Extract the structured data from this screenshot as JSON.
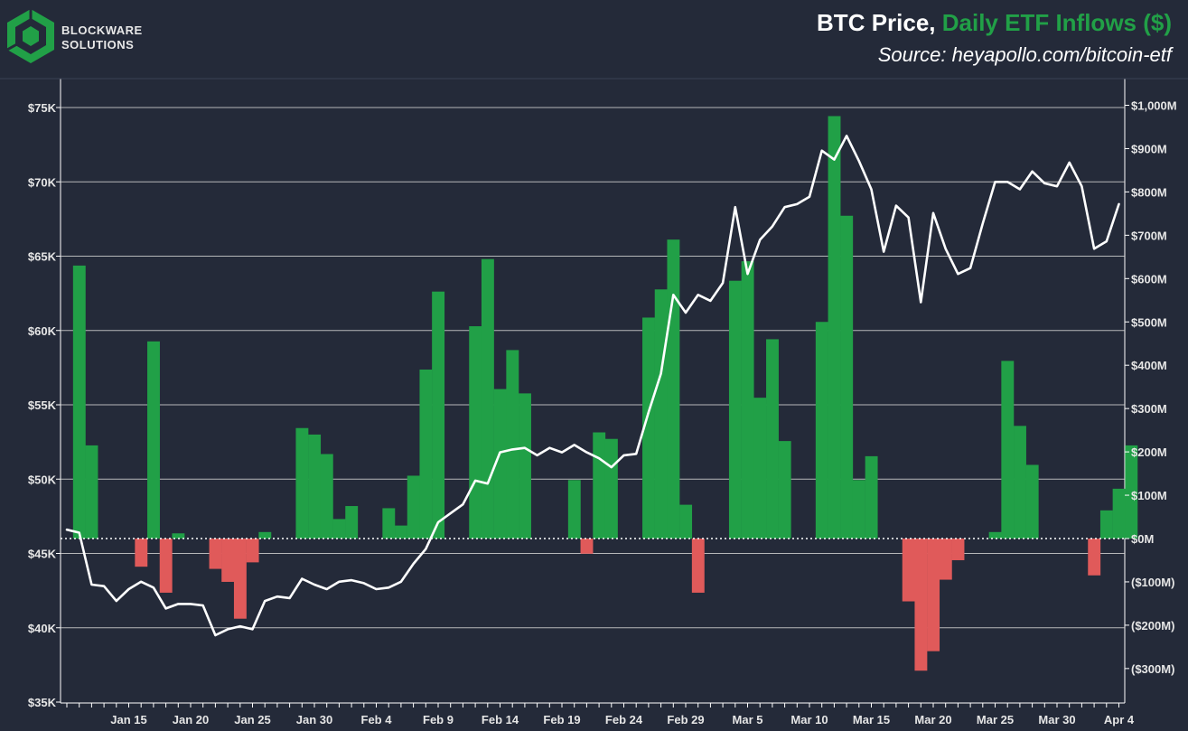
{
  "brand": {
    "line1": "BLOCKWARE",
    "line2": "SOLUTIONS",
    "logo_color": "#21a047",
    "icon": "blockware-cube-logo"
  },
  "header": {
    "title_part1": "BTC Price, ",
    "title_part2": "Daily ETF Inflows ($)",
    "source": "Source: heyapollo.com/bitcoin-etf"
  },
  "colors": {
    "background": "#242a39",
    "plot_background": "#232938",
    "gridline": "#d0d0d0",
    "inflow_positive": "#21a047",
    "inflow_negative": "#e05a5a",
    "price_line": "#ffffff",
    "zero_line": "#ffffff"
  },
  "chart_data": {
    "type": "bar+line",
    "title": "BTC Price, Daily ETF Inflows ($)",
    "x_tick_labels": [
      "Jan 15",
      "Jan 20",
      "Jan 25",
      "Jan 30",
      "Feb 4",
      "Feb 9",
      "Feb 14",
      "Feb 19",
      "Feb 24",
      "Feb 29",
      "Mar 5",
      "Mar 10",
      "Mar 15",
      "Mar 20",
      "Mar 25",
      "Mar 30",
      "Apr 4"
    ],
    "x_range": [
      "Jan 10",
      "Apr 5"
    ],
    "left_axis": {
      "ylim": [
        35,
        77
      ],
      "ticks": [
        35,
        40,
        45,
        50,
        55,
        60,
        65,
        70,
        75
      ],
      "tick_labels": [
        "$35K",
        "$40K",
        "$45K",
        "$50K",
        "$55K",
        "$60K",
        "$65K",
        "$70K",
        "$75K"
      ],
      "grid": true
    },
    "right_axis": {
      "ylim": [
        -360,
        1040
      ],
      "ticks": [
        -300,
        -200,
        -100,
        0,
        100,
        200,
        300,
        400,
        500,
        600,
        700,
        800,
        900,
        1000
      ],
      "tick_labels": [
        "($300M)",
        "($200M)",
        "($100M)",
        "$0M",
        "$100M",
        "$200M",
        "$300M",
        "$400M",
        "$500M",
        "$600M",
        "$700M",
        "$800M",
        "$900M",
        "$1,000M"
      ],
      "zero_line": "dotted"
    },
    "inflows_series": {
      "name": "Daily ETF Inflows ($)",
      "unit": "$M",
      "points": [
        {
          "date": "Jan 11",
          "value": 630
        },
        {
          "date": "Jan 12",
          "value": 215
        },
        {
          "date": "Jan 16",
          "value": -65
        },
        {
          "date": "Jan 17",
          "value": 455
        },
        {
          "date": "Jan 18",
          "value": -125
        },
        {
          "date": "Jan 19",
          "value": 12
        },
        {
          "date": "Jan 22",
          "value": -70
        },
        {
          "date": "Jan 23",
          "value": -100
        },
        {
          "date": "Jan 24",
          "value": -185
        },
        {
          "date": "Jan 25",
          "value": -55
        },
        {
          "date": "Jan 26",
          "value": 15
        },
        {
          "date": "Jan 29",
          "value": 255
        },
        {
          "date": "Jan 30",
          "value": 240
        },
        {
          "date": "Jan 31",
          "value": 195
        },
        {
          "date": "Feb 1",
          "value": 45
        },
        {
          "date": "Feb 2",
          "value": 75
        },
        {
          "date": "Feb 5",
          "value": 70
        },
        {
          "date": "Feb 6",
          "value": 30
        },
        {
          "date": "Feb 7",
          "value": 145
        },
        {
          "date": "Feb 8",
          "value": 390
        },
        {
          "date": "Feb 9",
          "value": 570
        },
        {
          "date": "Feb 12",
          "value": 490
        },
        {
          "date": "Feb 13",
          "value": 645
        },
        {
          "date": "Feb 14",
          "value": 345
        },
        {
          "date": "Feb 15",
          "value": 435
        },
        {
          "date": "Feb 16",
          "value": 335
        },
        {
          "date": "Feb 20",
          "value": 135
        },
        {
          "date": "Feb 21",
          "value": -35
        },
        {
          "date": "Feb 22",
          "value": 245
        },
        {
          "date": "Feb 23",
          "value": 230
        },
        {
          "date": "Feb 26",
          "value": 510
        },
        {
          "date": "Feb 27",
          "value": 575
        },
        {
          "date": "Feb 28",
          "value": 690
        },
        {
          "date": "Feb 29",
          "value": 78
        },
        {
          "date": "Mar 1",
          "value": -125
        },
        {
          "date": "Mar 4",
          "value": 595
        },
        {
          "date": "Mar 5",
          "value": 640
        },
        {
          "date": "Mar 6",
          "value": 325
        },
        {
          "date": "Mar 7",
          "value": 460
        },
        {
          "date": "Mar 8",
          "value": 225
        },
        {
          "date": "Mar 11",
          "value": 500
        },
        {
          "date": "Mar 12",
          "value": 975
        },
        {
          "date": "Mar 13",
          "value": 745
        },
        {
          "date": "Mar 14",
          "value": 135
        },
        {
          "date": "Mar 15",
          "value": 190
        },
        {
          "date": "Mar 18",
          "value": -145
        },
        {
          "date": "Mar 19",
          "value": -305
        },
        {
          "date": "Mar 20",
          "value": -260
        },
        {
          "date": "Mar 21",
          "value": -95
        },
        {
          "date": "Mar 22",
          "value": -50
        },
        {
          "date": "Mar 25",
          "value": 15
        },
        {
          "date": "Mar 26",
          "value": 410
        },
        {
          "date": "Mar 27",
          "value": 260
        },
        {
          "date": "Mar 28",
          "value": 170
        },
        {
          "date": "Apr 2",
          "value": -85
        },
        {
          "date": "Apr 3",
          "value": 65
        },
        {
          "date": "Apr 4",
          "value": 115
        },
        {
          "date": "Apr 5",
          "value": 215
        }
      ]
    },
    "price_series": {
      "name": "BTC Price",
      "unit": "$K",
      "points": [
        {
          "date": "Jan 10",
          "value": 46.6
        },
        {
          "date": "Jan 11",
          "value": 46.4
        },
        {
          "date": "Jan 12",
          "value": 42.9
        },
        {
          "date": "Jan 13",
          "value": 42.8
        },
        {
          "date": "Jan 14",
          "value": 41.8
        },
        {
          "date": "Jan 15",
          "value": 42.6
        },
        {
          "date": "Jan 16",
          "value": 43.1
        },
        {
          "date": "Jan 17",
          "value": 42.7
        },
        {
          "date": "Jan 18",
          "value": 41.3
        },
        {
          "date": "Jan 19",
          "value": 41.6
        },
        {
          "date": "Jan 20",
          "value": 41.6
        },
        {
          "date": "Jan 21",
          "value": 41.5
        },
        {
          "date": "Jan 22",
          "value": 39.5
        },
        {
          "date": "Jan 23",
          "value": 39.9
        },
        {
          "date": "Jan 24",
          "value": 40.1
        },
        {
          "date": "Jan 25",
          "value": 39.9
        },
        {
          "date": "Jan 26",
          "value": 41.8
        },
        {
          "date": "Jan 27",
          "value": 42.1
        },
        {
          "date": "Jan 28",
          "value": 42.0
        },
        {
          "date": "Jan 29",
          "value": 43.3
        },
        {
          "date": "Jan 30",
          "value": 42.9
        },
        {
          "date": "Jan 31",
          "value": 42.6
        },
        {
          "date": "Feb 1",
          "value": 43.1
        },
        {
          "date": "Feb 2",
          "value": 43.2
        },
        {
          "date": "Feb 3",
          "value": 43.0
        },
        {
          "date": "Feb 4",
          "value": 42.6
        },
        {
          "date": "Feb 5",
          "value": 42.7
        },
        {
          "date": "Feb 6",
          "value": 43.1
        },
        {
          "date": "Feb 7",
          "value": 44.3
        },
        {
          "date": "Feb 8",
          "value": 45.3
        },
        {
          "date": "Feb 9",
          "value": 47.1
        },
        {
          "date": "Feb 10",
          "value": 47.7
        },
        {
          "date": "Feb 11",
          "value": 48.3
        },
        {
          "date": "Feb 12",
          "value": 49.9
        },
        {
          "date": "Feb 13",
          "value": 49.7
        },
        {
          "date": "Feb 14",
          "value": 51.8
        },
        {
          "date": "Feb 15",
          "value": 52.0
        },
        {
          "date": "Feb 16",
          "value": 52.1
        },
        {
          "date": "Feb 17",
          "value": 51.6
        },
        {
          "date": "Feb 18",
          "value": 52.1
        },
        {
          "date": "Feb 19",
          "value": 51.8
        },
        {
          "date": "Feb 20",
          "value": 52.3
        },
        {
          "date": "Feb 21",
          "value": 51.8
        },
        {
          "date": "Feb 22",
          "value": 51.4
        },
        {
          "date": "Feb 23",
          "value": 50.8
        },
        {
          "date": "Feb 24",
          "value": 51.6
        },
        {
          "date": "Feb 25",
          "value": 51.7
        },
        {
          "date": "Feb 26",
          "value": 54.5
        },
        {
          "date": "Feb 27",
          "value": 57.1
        },
        {
          "date": "Feb 28",
          "value": 62.4
        },
        {
          "date": "Feb 29",
          "value": 61.2
        },
        {
          "date": "Mar 1",
          "value": 62.4
        },
        {
          "date": "Mar 2",
          "value": 62.0
        },
        {
          "date": "Mar 3",
          "value": 63.2
        },
        {
          "date": "Mar 4",
          "value": 68.3
        },
        {
          "date": "Mar 5",
          "value": 63.8
        },
        {
          "date": "Mar 6",
          "value": 66.1
        },
        {
          "date": "Mar 7",
          "value": 67.0
        },
        {
          "date": "Mar 8",
          "value": 68.3
        },
        {
          "date": "Mar 9",
          "value": 68.5
        },
        {
          "date": "Mar 10",
          "value": 69.0
        },
        {
          "date": "Mar 11",
          "value": 72.1
        },
        {
          "date": "Mar 12",
          "value": 71.5
        },
        {
          "date": "Mar 13",
          "value": 73.1
        },
        {
          "date": "Mar 14",
          "value": 71.4
        },
        {
          "date": "Mar 15",
          "value": 69.5
        },
        {
          "date": "Mar 16",
          "value": 65.3
        },
        {
          "date": "Mar 17",
          "value": 68.4
        },
        {
          "date": "Mar 18",
          "value": 67.6
        },
        {
          "date": "Mar 19",
          "value": 61.9
        },
        {
          "date": "Mar 20",
          "value": 67.9
        },
        {
          "date": "Mar 21",
          "value": 65.5
        },
        {
          "date": "Mar 22",
          "value": 63.8
        },
        {
          "date": "Mar 23",
          "value": 64.2
        },
        {
          "date": "Mar 24",
          "value": 67.2
        },
        {
          "date": "Mar 25",
          "value": 70.0
        },
        {
          "date": "Mar 26",
          "value": 70.0
        },
        {
          "date": "Mar 27",
          "value": 69.5
        },
        {
          "date": "Mar 28",
          "value": 70.7
        },
        {
          "date": "Mar 29",
          "value": 69.9
        },
        {
          "date": "Mar 30",
          "value": 69.7
        },
        {
          "date": "Mar 31",
          "value": 71.3
        },
        {
          "date": "Apr 1",
          "value": 69.7
        },
        {
          "date": "Apr 2",
          "value": 65.5
        },
        {
          "date": "Apr 3",
          "value": 66.0
        },
        {
          "date": "Apr 4",
          "value": 68.5
        }
      ]
    }
  }
}
